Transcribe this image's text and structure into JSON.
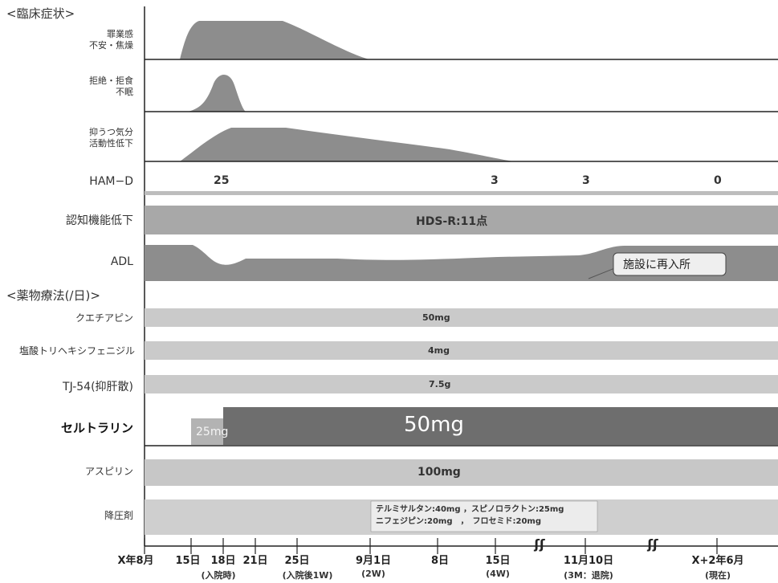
{
  "chart_data": {
    "type": "timeline",
    "section_title": "<臨床症状>",
    "symptoms": [
      {
        "label_lines": [
          "罪業感",
          "不安・焦燥"
        ]
      },
      {
        "label_lines": [
          "拒絶・拒食",
          "不眠"
        ]
      },
      {
        "label_lines": [
          "抑うつ気分",
          "活動性低下"
        ]
      }
    ],
    "ham_d": {
      "label": "HAM−D",
      "values": [
        "25",
        "3",
        "3",
        "0"
      ]
    },
    "cognitive": {
      "label": "認知機能低下",
      "value": "HDS-R:11点"
    },
    "adl": {
      "label": "ADL",
      "annotation": "施設に再入所"
    },
    "drug_section_title": "<薬物療法(/日)>",
    "drugs": [
      {
        "name": "クエチアピン",
        "dose": "50mg"
      },
      {
        "name": "塩酸トリヘキシフェニジル",
        "dose": "4mg"
      },
      {
        "name": "TJ-54(抑肝散)",
        "dose": "7.5g"
      },
      {
        "name": "セルトラリン",
        "dose_initial": "25mg",
        "dose": "50mg"
      },
      {
        "name": "アスピリン",
        "dose": "100mg"
      },
      {
        "name": "降圧剤",
        "dose_lines": [
          "テルミサルタン:40mg ，スピノロラクトン:25mg",
          "ニフェジピン:20mg　，　フロセミド:20mg"
        ]
      }
    ],
    "x_ticks": [
      {
        "label": "X年8月",
        "sub": ""
      },
      {
        "label": "15日",
        "sub": ""
      },
      {
        "label": "18日",
        "sub": "(入院時)"
      },
      {
        "label": "21日",
        "sub": ""
      },
      {
        "label": "25日",
        "sub": "(入院後1W)"
      },
      {
        "label": "9月1日",
        "sub": "(2W)"
      },
      {
        "label": "8日",
        "sub": ""
      },
      {
        "label": "15日",
        "sub": "(4W)"
      },
      {
        "label": "11月10日",
        "sub": "(3M：退院)"
      },
      {
        "label": "X+2年6月",
        "sub": "(現在)"
      }
    ],
    "axis_break_symbol": "ʃʃ",
    "colors": {
      "fill": "#8d8d8d",
      "band": "#c4c4c4",
      "dark": "#6b6b6b",
      "light": "#d4d4d4"
    }
  }
}
